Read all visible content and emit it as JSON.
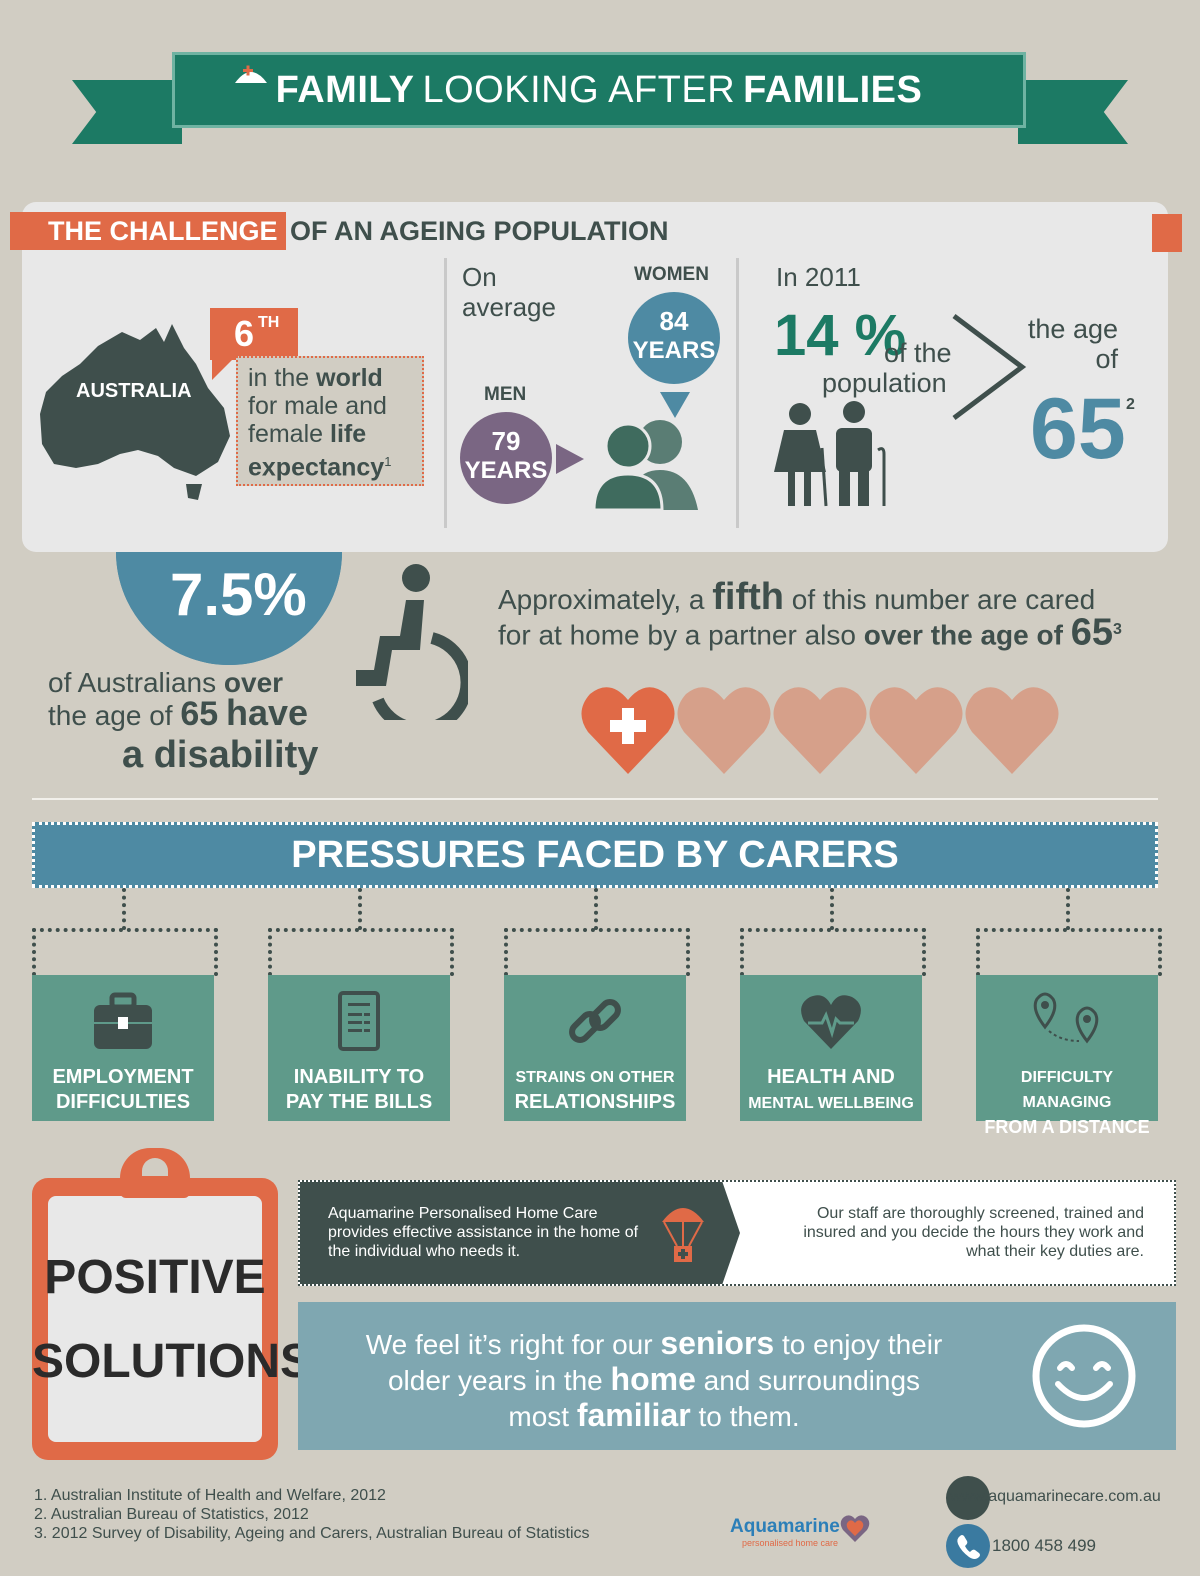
{
  "header": {
    "title_part1": "FAMILY",
    "title_part2": "LOOKING AFTER",
    "title_part3": "FAMILIES"
  },
  "challenge": {
    "heading_highlight": "THE CHALLENGE",
    "heading_rest": "OF AN AGEING POPULATION",
    "australia_label": "AUSTRALIA",
    "rank": "6",
    "rank_suffix": "TH",
    "rank_text_1": "in the",
    "rank_text_world": "world",
    "rank_text_2": "for male and",
    "rank_text_3": "female",
    "rank_text_life": "life",
    "rank_text_expectancy": "expectancy",
    "rank_text_ref": "1",
    "on_average_1": "On",
    "on_average_2": "average",
    "women_label": "WOMEN",
    "women_years_num": "84",
    "women_years_word": "YEARS",
    "men_label": "MEN",
    "men_years_num": "79",
    "men_years_word": "YEARS",
    "in_year": "In 2011",
    "pct_value": "14 %",
    "pct_text_1": "of the",
    "pct_text_2": "population",
    "age_text_1": "the age",
    "age_text_2": "of",
    "age_value": "65",
    "age_ref": "2"
  },
  "disability": {
    "pct": "7.5%",
    "text_1": "of Australians",
    "text_over": "over",
    "text_2": "the age of",
    "text_65": "65",
    "text_have": "have",
    "text_3": "a disability"
  },
  "fifth": {
    "text_1": "Approximately, a",
    "text_fifth": "fifth",
    "text_2": "of this number are cared",
    "text_3": "for at home by a partner also",
    "text_over": "over the age of",
    "text_65": "65",
    "text_ref": "3",
    "hearts_total": 5,
    "hearts_highlighted": 1
  },
  "pressures": {
    "title": "PRESSURES FACED BY CARERS",
    "items": [
      {
        "line1": "EMPLOYMENT",
        "line2": "DIFFICULTIES",
        "icon": "briefcase-icon"
      },
      {
        "line1": "INABILITY TO",
        "line2": "PAY THE BILLS",
        "icon": "bill-icon"
      },
      {
        "line1": "STRAINS ON OTHER",
        "line2": "RELATIONSHIPS",
        "icon": "chain-link-icon"
      },
      {
        "line1": "HEALTH AND",
        "line2": "MENTAL WELLBEING",
        "icon": "heart-pulse-icon"
      },
      {
        "line1": "DIFFICULTY MANAGING",
        "line2": "FROM A DISTANCE",
        "icon": "map-pins-icon"
      }
    ]
  },
  "solutions": {
    "title_1": "POSITIVE",
    "title_2": "SOLUTIONS",
    "left_text": "Aquamarine Personalised Home Care provides effective assistance in the home of the individual who needs it.",
    "right_text": "Our staff are thoroughly screened, trained and insured and you decide the hours they work and what their key duties are.",
    "quote_1": "We feel it’s right for our",
    "quote_seniors": "seniors",
    "quote_2": "to enjoy their",
    "quote_3": "older years in the",
    "quote_home": "home",
    "quote_4": "and surroundings",
    "quote_5": "most",
    "quote_familiar": "familiar",
    "quote_6": "to them."
  },
  "sources": [
    "1. Australian Institute of Health and Welfare, 2012",
    "2. Australian Bureau of Statistics, 2012",
    "3. 2012 Survey of Disability, Ageing and Carers, Australian Bureau of Statistics"
  ],
  "footer": {
    "brand": "Aquamarine",
    "brand_sub": "personalised home care",
    "website": "www.aquamarinecare.com.au",
    "phone": "1800 458 499"
  },
  "colors": {
    "teal": "#1c7a64",
    "orange": "#e06a47",
    "blue": "#4e8aa3",
    "purple": "#7a6683",
    "slate": "#3f4f4c",
    "sage": "#5f9a8a",
    "bg": "#d1cdc3"
  }
}
